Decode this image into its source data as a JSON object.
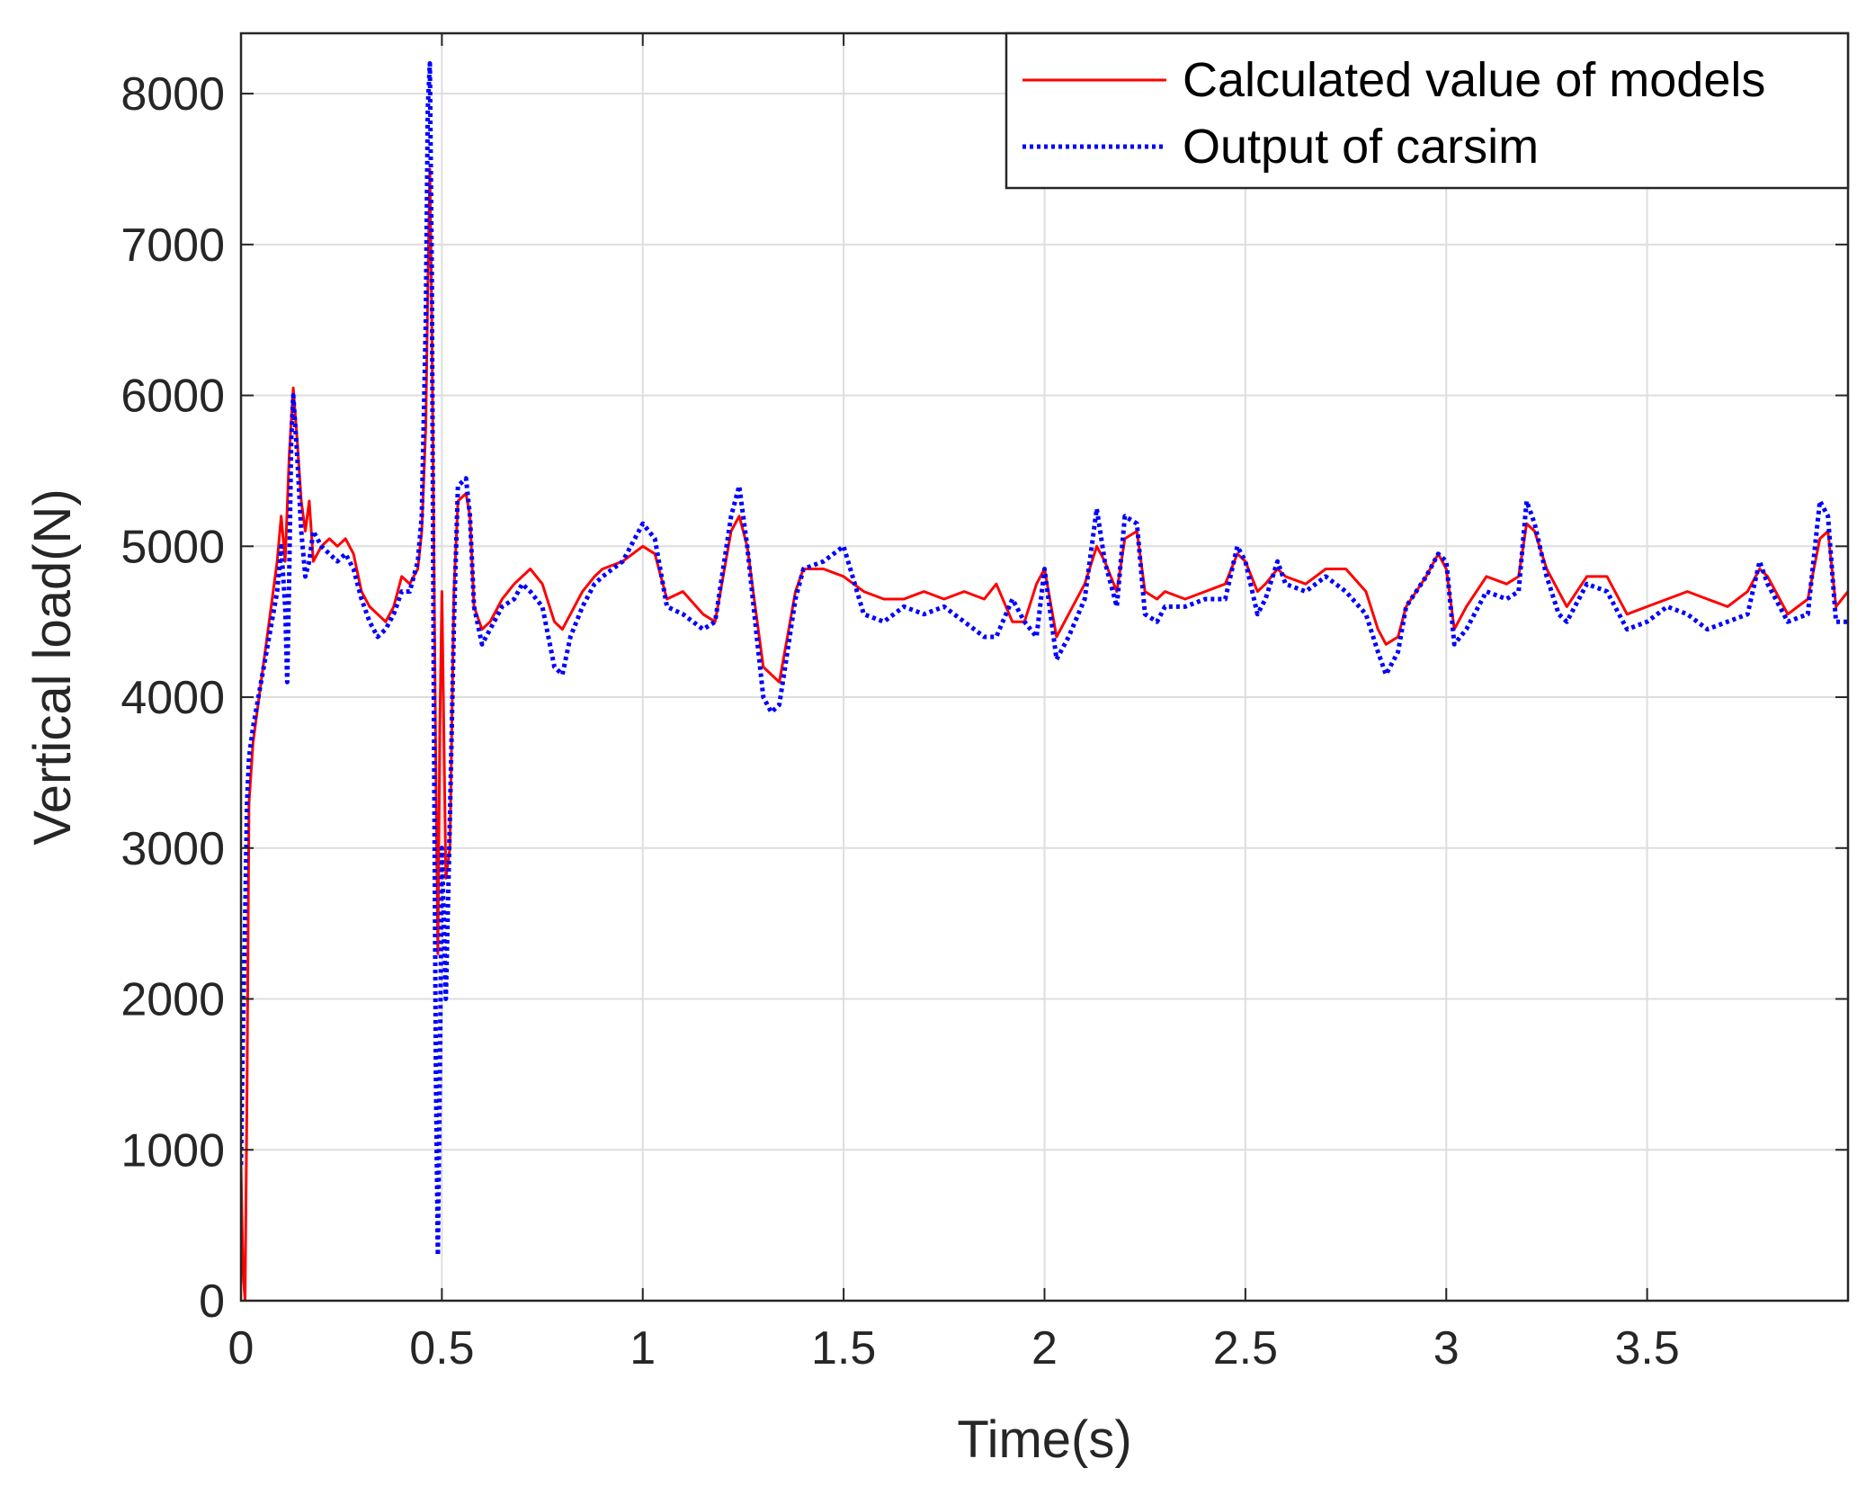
{
  "chart_data": {
    "type": "line",
    "title": "",
    "xlabel": "Time(s)",
    "ylabel": "Vertical load(N)",
    "xlim": [
      0,
      4
    ],
    "ylim": [
      0,
      8400
    ],
    "xticks": [
      0,
      0.5,
      1,
      1.5,
      2,
      2.5,
      3,
      3.5
    ],
    "xtick_labels": [
      "0",
      "0.5",
      "1",
      "1.5",
      "2",
      "2.5",
      "3",
      "3.5"
    ],
    "yticks": [
      0,
      1000,
      2000,
      3000,
      4000,
      5000,
      6000,
      7000,
      8000
    ],
    "ytick_labels": [
      "0",
      "1000",
      "2000",
      "3000",
      "4000",
      "5000",
      "6000",
      "7000",
      "8000"
    ],
    "grid": true,
    "legend_position": "top-right",
    "colors": {
      "calculated": "#ff0000",
      "carsim": "#0000ff",
      "axis": "#262626",
      "grid": "#dedede"
    },
    "series": [
      {
        "name": "Calculated value of models",
        "style": "solid",
        "x": [
          0,
          0.005,
          0.01,
          0.015,
          0.02,
          0.03,
          0.05,
          0.07,
          0.09,
          0.1,
          0.11,
          0.12,
          0.13,
          0.14,
          0.15,
          0.16,
          0.17,
          0.18,
          0.2,
          0.22,
          0.24,
          0.26,
          0.28,
          0.3,
          0.32,
          0.34,
          0.36,
          0.38,
          0.4,
          0.42,
          0.44,
          0.45,
          0.46,
          0.465,
          0.47,
          0.475,
          0.48,
          0.485,
          0.49,
          0.495,
          0.5,
          0.51,
          0.52,
          0.53,
          0.54,
          0.56,
          0.57,
          0.58,
          0.6,
          0.62,
          0.65,
          0.68,
          0.7,
          0.72,
          0.75,
          0.78,
          0.8,
          0.82,
          0.85,
          0.88,
          0.9,
          0.95,
          1.0,
          1.03,
          1.06,
          1.1,
          1.15,
          1.18,
          1.22,
          1.24,
          1.26,
          1.28,
          1.3,
          1.32,
          1.34,
          1.36,
          1.38,
          1.4,
          1.45,
          1.5,
          1.55,
          1.6,
          1.65,
          1.7,
          1.75,
          1.8,
          1.85,
          1.88,
          1.92,
          1.95,
          1.98,
          2.0,
          2.03,
          2.06,
          2.1,
          2.13,
          2.15,
          2.18,
          2.2,
          2.23,
          2.25,
          2.28,
          2.3,
          2.35,
          2.4,
          2.45,
          2.48,
          2.5,
          2.53,
          2.55,
          2.58,
          2.6,
          2.65,
          2.7,
          2.75,
          2.8,
          2.83,
          2.85,
          2.88,
          2.9,
          2.95,
          2.98,
          3.0,
          3.02,
          3.05,
          3.1,
          3.15,
          3.18,
          3.2,
          3.22,
          3.25,
          3.28,
          3.3,
          3.35,
          3.4,
          3.45,
          3.5,
          3.55,
          3.6,
          3.65,
          3.7,
          3.75,
          3.78,
          3.8,
          3.85,
          3.9,
          3.93,
          3.95,
          3.97,
          4.0
        ],
        "y": [
          900,
          200,
          0,
          1400,
          3300,
          3700,
          4100,
          4500,
          4900,
          5200,
          4900,
          5600,
          6050,
          5700,
          5300,
          5100,
          5300,
          4900,
          5000,
          5050,
          5000,
          5050,
          4950,
          4700,
          4600,
          4550,
          4500,
          4600,
          4800,
          4750,
          4850,
          5100,
          5800,
          6700,
          7500,
          6500,
          5000,
          3500,
          2300,
          3800,
          4700,
          2800,
          3000,
          4700,
          5300,
          5350,
          5200,
          4600,
          4450,
          4500,
          4650,
          4750,
          4800,
          4850,
          4750,
          4500,
          4450,
          4550,
          4700,
          4800,
          4850,
          4900,
          5000,
          4950,
          4650,
          4700,
          4550,
          4500,
          5100,
          5200,
          5000,
          4600,
          4200,
          4150,
          4100,
          4400,
          4700,
          4850,
          4850,
          4800,
          4700,
          4650,
          4650,
          4700,
          4650,
          4700,
          4650,
          4750,
          4500,
          4500,
          4750,
          4850,
          4400,
          4550,
          4750,
          5000,
          4900,
          4700,
          5050,
          5100,
          4700,
          4650,
          4700,
          4650,
          4700,
          4750,
          4950,
          4900,
          4700,
          4750,
          4850,
          4800,
          4750,
          4850,
          4850,
          4700,
          4450,
          4350,
          4400,
          4600,
          4800,
          4950,
          4850,
          4450,
          4600,
          4800,
          4750,
          4800,
          5150,
          5100,
          4850,
          4700,
          4600,
          4800,
          4800,
          4550,
          4600,
          4650,
          4700,
          4650,
          4600,
          4700,
          4850,
          4800,
          4550,
          4650,
          5050,
          5100,
          4600,
          4700
        ]
      },
      {
        "name": "Output of carsim",
        "style": "dotted",
        "x": [
          0,
          0.005,
          0.01,
          0.015,
          0.02,
          0.03,
          0.05,
          0.07,
          0.09,
          0.1,
          0.11,
          0.115,
          0.12,
          0.125,
          0.13,
          0.14,
          0.15,
          0.16,
          0.17,
          0.18,
          0.2,
          0.22,
          0.24,
          0.26,
          0.28,
          0.3,
          0.32,
          0.34,
          0.36,
          0.38,
          0.4,
          0.42,
          0.44,
          0.45,
          0.46,
          0.465,
          0.47,
          0.475,
          0.48,
          0.485,
          0.49,
          0.495,
          0.5,
          0.51,
          0.52,
          0.53,
          0.54,
          0.56,
          0.57,
          0.58,
          0.6,
          0.62,
          0.65,
          0.68,
          0.7,
          0.72,
          0.75,
          0.78,
          0.8,
          0.82,
          0.85,
          0.88,
          0.9,
          0.95,
          1.0,
          1.03,
          1.06,
          1.1,
          1.15,
          1.18,
          1.22,
          1.24,
          1.26,
          1.28,
          1.3,
          1.32,
          1.34,
          1.36,
          1.38,
          1.4,
          1.45,
          1.5,
          1.55,
          1.6,
          1.65,
          1.7,
          1.75,
          1.8,
          1.85,
          1.88,
          1.92,
          1.95,
          1.98,
          2.0,
          2.03,
          2.06,
          2.1,
          2.13,
          2.15,
          2.18,
          2.2,
          2.23,
          2.25,
          2.28,
          2.3,
          2.35,
          2.4,
          2.45,
          2.48,
          2.5,
          2.53,
          2.55,
          2.58,
          2.6,
          2.65,
          2.7,
          2.75,
          2.8,
          2.83,
          2.85,
          2.88,
          2.9,
          2.95,
          2.98,
          3.0,
          3.02,
          3.05,
          3.1,
          3.15,
          3.18,
          3.2,
          3.22,
          3.25,
          3.28,
          3.3,
          3.35,
          3.4,
          3.45,
          3.5,
          3.55,
          3.6,
          3.65,
          3.7,
          3.75,
          3.78,
          3.8,
          3.85,
          3.9,
          3.93,
          3.95,
          3.97,
          4.0
        ],
        "y": [
          900,
          1800,
          2500,
          3300,
          3600,
          3800,
          4100,
          4400,
          4700,
          5000,
          4600,
          4100,
          4800,
          5700,
          6000,
          5600,
          5100,
          4800,
          4900,
          5100,
          5000,
          4950,
          4900,
          4950,
          4850,
          4650,
          4500,
          4400,
          4450,
          4550,
          4700,
          4700,
          4900,
          5200,
          6500,
          7900,
          8200,
          6800,
          4000,
          1500,
          300,
          1500,
          3000,
          2000,
          3200,
          4500,
          5400,
          5450,
          5200,
          4600,
          4350,
          4450,
          4600,
          4650,
          4750,
          4700,
          4600,
          4200,
          4150,
          4400,
          4600,
          4750,
          4800,
          4900,
          5150,
          5050,
          4600,
          4550,
          4450,
          4500,
          5200,
          5400,
          5000,
          4500,
          4000,
          3900,
          3950,
          4300,
          4650,
          4850,
          4900,
          5000,
          4550,
          4500,
          4600,
          4550,
          4600,
          4500,
          4400,
          4400,
          4650,
          4500,
          4400,
          4850,
          4250,
          4400,
          4650,
          5250,
          4900,
          4600,
          5200,
          5150,
          4550,
          4500,
          4600,
          4600,
          4650,
          4650,
          5000,
          4900,
          4550,
          4650,
          4900,
          4750,
          4700,
          4800,
          4700,
          4550,
          4300,
          4150,
          4300,
          4600,
          4800,
          4950,
          4900,
          4350,
          4450,
          4700,
          4650,
          4700,
          5300,
          5150,
          4800,
          4550,
          4500,
          4750,
          4700,
          4450,
          4500,
          4600,
          4550,
          4450,
          4500,
          4550,
          4900,
          4750,
          4500,
          4550,
          5300,
          5200,
          4500,
          4500
        ]
      }
    ]
  }
}
